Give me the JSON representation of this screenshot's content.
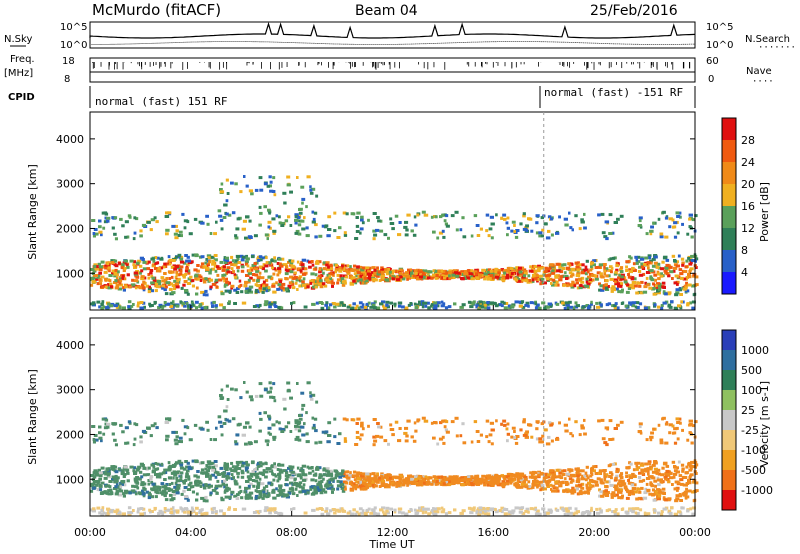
{
  "header": {
    "station": "McMurdo (fitACF)",
    "beam": "Beam 04",
    "date": "25/Feb/2016"
  },
  "top_panels": {
    "nsky_label": "N.Sky",
    "nsearch_label": "N.Search",
    "noise_top_left": "10^5",
    "noise_bottom_left": "10^0",
    "noise_top_right": "10^5",
    "noise_bottom_right": "10^0",
    "freq_label_line1": "Freq.",
    "freq_label_line2": "[MHz]",
    "freq_top": "18",
    "freq_bottom": "8",
    "nave_label": "Nave",
    "nave_top": "60",
    "nave_bottom": "0",
    "cpid_label": "CPID",
    "cpid_segments": [
      {
        "text": "normal (fast) 151 RF",
        "start_hour": 0,
        "end_hour": 18
      },
      {
        "text": "normal (fast) -151 RF",
        "start_hour": 18,
        "end_hour": 24
      }
    ]
  },
  "chart_data": [
    {
      "type": "heatmap",
      "name": "power",
      "ylabel": "Slant Range [km]",
      "yticks": [
        1000,
        2000,
        3000,
        4000
      ],
      "ylim": [
        180,
        4600
      ],
      "xlim_hours": [
        0,
        24
      ],
      "colorbar": {
        "label": "Power [dB]",
        "ticks": [
          "4",
          "8",
          "12",
          "16",
          "20",
          "24",
          "28"
        ],
        "colors": [
          "#1a1aff",
          "#2860c8",
          "#2f7f58",
          "#5aa05a",
          "#f0b020",
          "#f08a18",
          "#f05a10",
          "#e01010"
        ]
      }
    },
    {
      "type": "heatmap",
      "name": "velocity",
      "ylabel": "Slant Range [km]",
      "yticks": [
        1000,
        2000,
        3000,
        4000
      ],
      "ylim": [
        180,
        4600
      ],
      "xlim_hours": [
        0,
        24
      ],
      "xlabel": "Time UT",
      "xticks": [
        "00:00",
        "04:00",
        "08:00",
        "12:00",
        "16:00",
        "20:00",
        "00:00"
      ],
      "colorbar": {
        "label": "Velocity [m s-1]",
        "ticks": [
          "1000",
          "500",
          "100",
          "25",
          "-25",
          "-100",
          "-500",
          "-1000"
        ],
        "colors": [
          "#2a3fb8",
          "#2f6f9f",
          "#2f7f58",
          "#8fc060",
          "#c8c8c8",
          "#f0c878",
          "#f0a020",
          "#f07018",
          "#e01010"
        ]
      }
    }
  ],
  "colors": {
    "power_band_mid": "#f06018",
    "velocity_west": "#4f8f68",
    "velocity_east": "#f08a20",
    "ground_scatter": "#b0b0b0"
  }
}
